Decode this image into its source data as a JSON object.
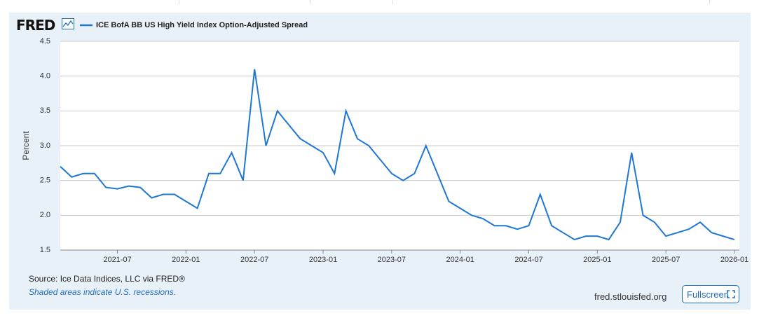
{
  "logo": "FRED",
  "chart_data": {
    "type": "line",
    "series": [
      {
        "name": "ICE BofA BB US High Yield Index Option-Adjusted Spread",
        "color": "#1f77d4",
        "values": [
          2.7,
          2.55,
          2.6,
          2.6,
          2.4,
          2.38,
          2.42,
          2.4,
          2.25,
          2.3,
          2.3,
          2.2,
          2.1,
          2.6,
          2.6,
          2.9,
          2.5,
          4.1,
          3.0,
          3.5,
          3.3,
          3.1,
          3.0,
          2.9,
          2.6,
          3.5,
          3.1,
          3.0,
          2.8,
          2.6,
          2.5,
          2.6,
          3.0,
          2.6,
          2.2,
          2.1,
          2.0,
          1.95,
          1.85,
          1.85,
          1.8,
          1.85,
          2.3,
          1.85,
          1.75,
          1.65,
          1.7,
          1.7,
          1.65,
          1.9,
          2.9,
          2.0,
          1.9,
          1.7,
          1.75,
          1.8,
          1.9,
          1.75,
          1.7,
          1.65
        ]
      }
    ],
    "x": [
      "2021-02",
      "2021-03",
      "2021-04",
      "2021-05",
      "2021-06",
      "2021-07",
      "2021-08",
      "2021-09",
      "2021-10",
      "2021-11",
      "2021-12",
      "2022-01",
      "2022-02",
      "2022-03",
      "2022-04",
      "2022-05",
      "2022-06",
      "2022-07",
      "2022-08",
      "2022-09",
      "2022-10",
      "2022-11",
      "2022-12",
      "2023-01",
      "2023-02",
      "2023-03",
      "2023-04",
      "2023-05",
      "2023-06",
      "2023-07",
      "2023-08",
      "2023-09",
      "2023-10",
      "2023-11",
      "2023-12",
      "2024-01",
      "2024-02",
      "2024-03",
      "2024-04",
      "2024-05",
      "2024-06",
      "2024-07",
      "2024-08",
      "2024-09",
      "2024-10",
      "2024-11",
      "2024-12",
      "2025-01",
      "2025-02",
      "2025-03",
      "2025-04",
      "2025-05",
      "2025-06",
      "2025-07",
      "2025-08",
      "2025-09",
      "2025-10",
      "2025-11",
      "2025-12",
      "2026-01"
    ],
    "xlim": [
      "2021-02",
      "2026-01"
    ],
    "xticks": [
      "2021-07",
      "2022-01",
      "2022-07",
      "2023-01",
      "2023-07",
      "2024-01",
      "2024-07",
      "2025-01",
      "2025-07",
      "2026-01"
    ],
    "ylabel": "Percent",
    "ylim": [
      1.5,
      4.5
    ],
    "yticks": [
      1.5,
      {
        "value": 2,
        "label": "2.0"
      },
      2.5,
      {
        "value": 3,
        "label": "3.0"
      },
      3.5,
      {
        "value": 4,
        "label": "4.0"
      },
      4.5
    ],
    "grid": true
  },
  "source": "Source: Ice Data Indices, LLC via FRED®",
  "note": "Shaded areas indicate U.S. recessions.",
  "site": "fred.stlouisfed.org",
  "button": "Fullscreen"
}
